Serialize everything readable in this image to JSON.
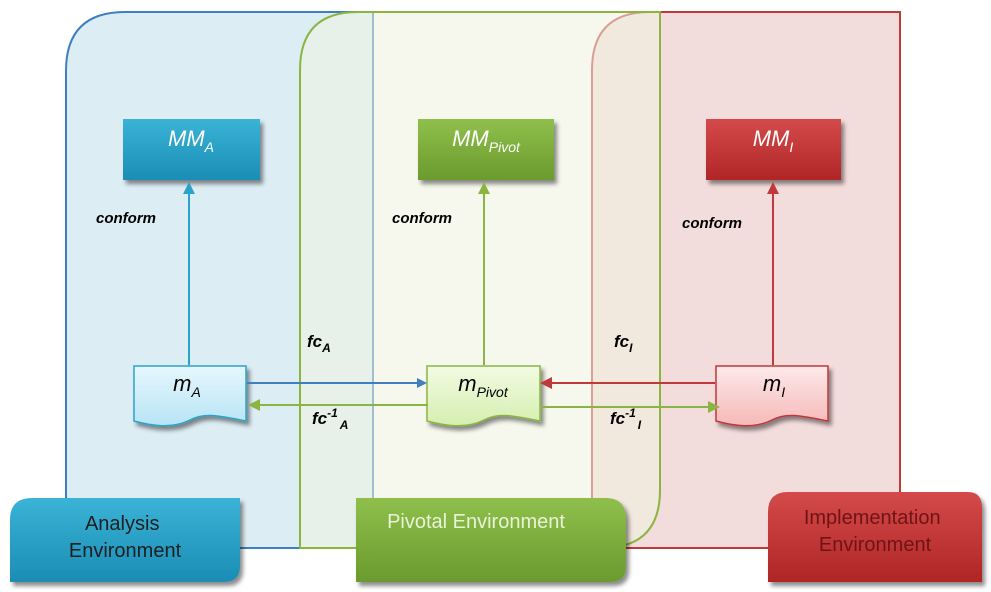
{
  "diagram": {
    "environments": [
      {
        "id": "analysis",
        "line1": "Analysis",
        "line2": "Environment"
      },
      {
        "id": "pivot",
        "line1": "Pivotal Environment"
      },
      {
        "id": "impl",
        "line1": "Implementation",
        "line2": "Environment"
      }
    ],
    "metamodels": [
      {
        "id": "mm_a",
        "base": "MM",
        "sub": "A"
      },
      {
        "id": "mm_pivot",
        "base": "MM",
        "sub": "Pivot"
      },
      {
        "id": "mm_i",
        "base": "MM",
        "sub": "I"
      }
    ],
    "models": [
      {
        "id": "m_a",
        "base": "m",
        "sub": "A"
      },
      {
        "id": "m_pivot",
        "base": "m",
        "sub": "Pivot"
      },
      {
        "id": "m_i",
        "base": "m",
        "sub": "I"
      }
    ],
    "conform_label": "conform",
    "functions": {
      "fc_a": {
        "base": "fc",
        "sub": "A"
      },
      "fc_a_inv": {
        "base": "fc",
        "sup": "-1",
        "sub": "A"
      },
      "fc_i": {
        "base": "fc",
        "sub": "I"
      },
      "fc_i_inv": {
        "base": "fc",
        "sup": "-1",
        "sub": "I"
      }
    },
    "colors": {
      "blue": "#3f7fbf",
      "green": "#8bb543",
      "red": "#c0393b"
    }
  }
}
